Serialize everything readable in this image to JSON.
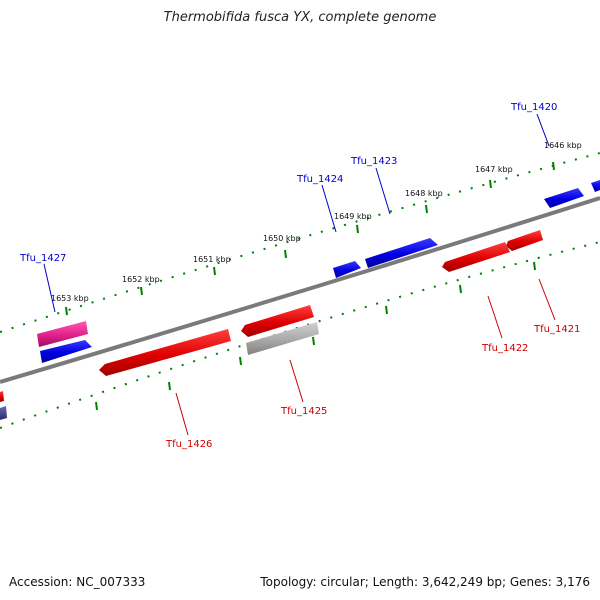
{
  "title": "Thermobifida fusca YX, complete genome",
  "footer": {
    "accession": "Accession: NC_007333",
    "stats": "Topology: circular; Length: 3,642,249 bp; Genes: 3,176"
  },
  "colors": {
    "forward": "#0000e0",
    "reverse": "#e00000",
    "pseudo": "#a8a8a8",
    "magenta": "#e0208a",
    "backbone": "#7a7a7a",
    "ticks": "#008000",
    "label_blue": "#0000cc",
    "label_red": "#cc0000"
  },
  "scale": {
    "unit": "kbp",
    "ticks": [
      {
        "kbp": 1646,
        "label": "1646 kbp"
      },
      {
        "kbp": 1647,
        "label": "1647 kbp"
      },
      {
        "kbp": 1648,
        "label": "1648 kbp"
      },
      {
        "kbp": 1649,
        "label": "1649 kbp"
      },
      {
        "kbp": 1650,
        "label": "1650 kbp"
      },
      {
        "kbp": 1651,
        "label": "1651 kbp"
      },
      {
        "kbp": 1652,
        "label": "1652 kbp"
      },
      {
        "kbp": 1653,
        "label": "1653 kbp"
      }
    ]
  },
  "genes": [
    {
      "name": "Tfu_1420",
      "strand": "forward"
    },
    {
      "name": "Tfu_1421",
      "strand": "reverse"
    },
    {
      "name": "Tfu_1422",
      "strand": "reverse"
    },
    {
      "name": "Tfu_1423",
      "strand": "forward"
    },
    {
      "name": "Tfu_1424",
      "strand": "forward"
    },
    {
      "name": "Tfu_1425",
      "strand": "reverse"
    },
    {
      "name": "Tfu_1426",
      "strand": "reverse"
    },
    {
      "name": "Tfu_1427",
      "strand": "forward"
    }
  ]
}
